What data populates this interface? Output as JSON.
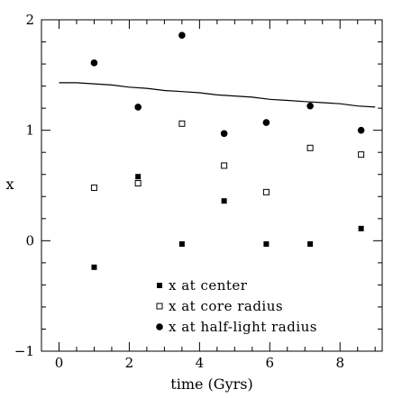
{
  "chart_data": {
    "type": "scatter",
    "title": "",
    "xlabel": "time (Gyrs)",
    "ylabel": "x",
    "xlim": [
      -0.5,
      9.2
    ],
    "ylim": [
      -1,
      2
    ],
    "x_ticks": [
      "0",
      "2",
      "4",
      "6",
      "8"
    ],
    "y_ticks": [
      "−1",
      "0",
      "1",
      "2"
    ],
    "grid": false,
    "legend_position": "bottom-right",
    "series": [
      {
        "name": "x at center",
        "marker": "filled-square",
        "x": [
          1.0,
          2.25,
          3.5,
          4.7,
          5.9,
          7.15,
          8.6
        ],
        "y": [
          -0.24,
          0.58,
          -0.03,
          0.36,
          -0.03,
          -0.03,
          0.11
        ]
      },
      {
        "name": "x at core radius",
        "marker": "open-square",
        "x": [
          1.0,
          2.25,
          3.5,
          4.7,
          5.9,
          7.15,
          8.6
        ],
        "y": [
          0.48,
          0.52,
          1.06,
          0.68,
          0.44,
          0.84,
          0.78
        ]
      },
      {
        "name": "x at half-light radius",
        "marker": "filled-circle",
        "x": [
          1.0,
          2.25,
          3.5,
          4.7,
          5.9,
          7.15,
          8.6
        ],
        "y": [
          1.61,
          1.21,
          1.86,
          0.97,
          1.07,
          1.22,
          1.0
        ]
      }
    ],
    "line": {
      "x": [
        0.0,
        0.5,
        1.0,
        1.5,
        2.0,
        2.5,
        3.0,
        3.5,
        4.0,
        4.5,
        5.0,
        5.5,
        6.0,
        6.5,
        7.0,
        7.5,
        8.0,
        8.5,
        9.0
      ],
      "y": [
        1.43,
        1.43,
        1.42,
        1.41,
        1.39,
        1.38,
        1.36,
        1.35,
        1.34,
        1.32,
        1.31,
        1.3,
        1.28,
        1.27,
        1.26,
        1.25,
        1.24,
        1.22,
        1.21
      ]
    }
  }
}
